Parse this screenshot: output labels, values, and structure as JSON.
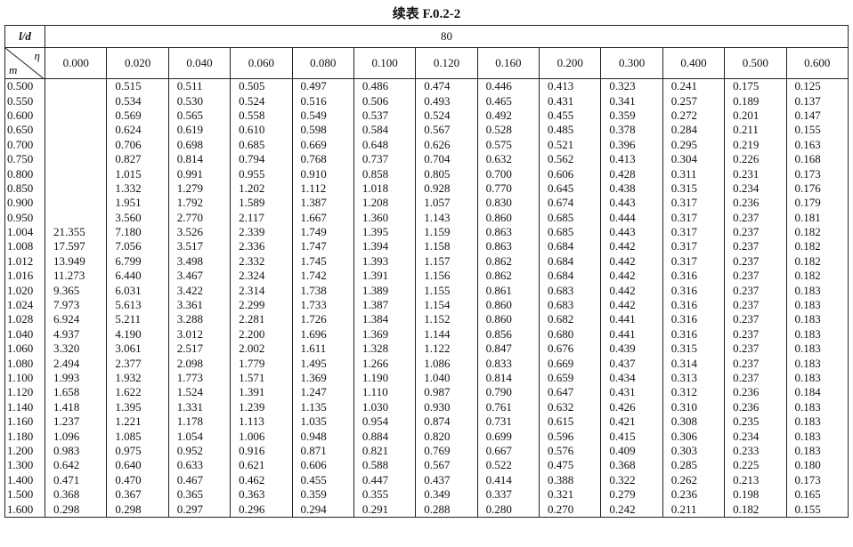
{
  "title": "续表 F.0.2-2",
  "header": {
    "ld_label": "l/d",
    "ld_value": "80",
    "eta_label": "η",
    "m_label": "m",
    "columns": [
      "0.000",
      "0.020",
      "0.040",
      "0.060",
      "0.080",
      "0.100",
      "0.120",
      "0.160",
      "0.200",
      "0.300",
      "0.400",
      "0.500",
      "0.600"
    ]
  },
  "table": {
    "rows": [
      {
        "m": "0.500",
        "values": [
          null,
          "0.515",
          "0.511",
          "0.505",
          "0.497",
          "0.486",
          "0.474",
          "0.446",
          "0.413",
          "0.323",
          "0.241",
          "0.175",
          "0.125"
        ]
      },
      {
        "m": "0.550",
        "values": [
          null,
          "0.534",
          "0.530",
          "0.524",
          "0.516",
          "0.506",
          "0.493",
          "0.465",
          "0.431",
          "0.341",
          "0.257",
          "0.189",
          "0.137"
        ]
      },
      {
        "m": "0.600",
        "values": [
          null,
          "0.569",
          "0.565",
          "0.558",
          "0.549",
          "0.537",
          "0.524",
          "0.492",
          "0.455",
          "0.359",
          "0.272",
          "0.201",
          "0.147"
        ]
      },
      {
        "m": "0.650",
        "values": [
          null,
          "0.624",
          "0.619",
          "0.610",
          "0.598",
          "0.584",
          "0.567",
          "0.528",
          "0.485",
          "0.378",
          "0.284",
          "0.211",
          "0.155"
        ]
      },
      {
        "m": "0.700",
        "values": [
          null,
          "0.706",
          "0.698",
          "0.685",
          "0.669",
          "0.648",
          "0.626",
          "0.575",
          "0.521",
          "0.396",
          "0.295",
          "0.219",
          "0.163"
        ]
      },
      {
        "m": "0.750",
        "values": [
          null,
          "0.827",
          "0.814",
          "0.794",
          "0.768",
          "0.737",
          "0.704",
          "0.632",
          "0.562",
          "0.413",
          "0.304",
          "0.226",
          "0.168"
        ]
      },
      {
        "m": "0.800",
        "values": [
          null,
          "1.015",
          "0.991",
          "0.955",
          "0.910",
          "0.858",
          "0.805",
          "0.700",
          "0.606",
          "0.428",
          "0.311",
          "0.231",
          "0.173"
        ]
      },
      {
        "m": "0.850",
        "values": [
          null,
          "1.332",
          "1.279",
          "1.202",
          "1.112",
          "1.018",
          "0.928",
          "0.770",
          "0.645",
          "0.438",
          "0.315",
          "0.234",
          "0.176"
        ]
      },
      {
        "m": "0.900",
        "values": [
          null,
          "1.951",
          "1.792",
          "1.589",
          "1.387",
          "1.208",
          "1.057",
          "0.830",
          "0.674",
          "0.443",
          "0.317",
          "0.236",
          "0.179"
        ]
      },
      {
        "m": "0.950",
        "values": [
          null,
          "3.560",
          "2.770",
          "2.117",
          "1.667",
          "1.360",
          "1.143",
          "0.860",
          "0.685",
          "0.444",
          "0.317",
          "0.237",
          "0.181"
        ]
      },
      {
        "m": "1.004",
        "values": [
          "21.355",
          "7.180",
          "3.526",
          "2.339",
          "1.749",
          "1.395",
          "1.159",
          "0.863",
          "0.685",
          "0.443",
          "0.317",
          "0.237",
          "0.182"
        ]
      },
      {
        "m": "1.008",
        "values": [
          "17.597",
          "7.056",
          "3.517",
          "2.336",
          "1.747",
          "1.394",
          "1.158",
          "0.863",
          "0.684",
          "0.442",
          "0.317",
          "0.237",
          "0.182"
        ]
      },
      {
        "m": "1.012",
        "values": [
          "13.949",
          "6.799",
          "3.498",
          "2.332",
          "1.745",
          "1.393",
          "1.157",
          "0.862",
          "0.684",
          "0.442",
          "0.317",
          "0.237",
          "0.182"
        ]
      },
      {
        "m": "1.016",
        "values": [
          "11.273",
          "6.440",
          "3.467",
          "2.324",
          "1.742",
          "1.391",
          "1.156",
          "0.862",
          "0.684",
          "0.442",
          "0.316",
          "0.237",
          "0.182"
        ]
      },
      {
        "m": "1.020",
        "values": [
          "9.365",
          "6.031",
          "3.422",
          "2.314",
          "1.738",
          "1.389",
          "1.155",
          "0.861",
          "0.683",
          "0.442",
          "0.316",
          "0.237",
          "0.183"
        ]
      },
      {
        "m": "1.024",
        "values": [
          "7.973",
          "5.613",
          "3.361",
          "2.299",
          "1.733",
          "1.387",
          "1.154",
          "0.860",
          "0.683",
          "0.442",
          "0.316",
          "0.237",
          "0.183"
        ]
      },
      {
        "m": "1.028",
        "values": [
          "6.924",
          "5.211",
          "3.288",
          "2.281",
          "1.726",
          "1.384",
          "1.152",
          "0.860",
          "0.682",
          "0.441",
          "0.316",
          "0.237",
          "0.183"
        ]
      },
      {
        "m": "1.040",
        "values": [
          "4.937",
          "4.190",
          "3.012",
          "2.200",
          "1.696",
          "1.369",
          "1.144",
          "0.856",
          "0.680",
          "0.441",
          "0.316",
          "0.237",
          "0.183"
        ]
      },
      {
        "m": "1.060",
        "values": [
          "3.320",
          "3.061",
          "2.517",
          "2.002",
          "1.611",
          "1.328",
          "1.122",
          "0.847",
          "0.676",
          "0.439",
          "0.315",
          "0.237",
          "0.183"
        ]
      },
      {
        "m": "1.080",
        "values": [
          "2.494",
          "2.377",
          "2.098",
          "1.779",
          "1.495",
          "1.266",
          "1.086",
          "0.833",
          "0.669",
          "0.437",
          "0.314",
          "0.237",
          "0.183"
        ]
      },
      {
        "m": "1.100",
        "values": [
          "1.993",
          "1.932",
          "1.773",
          "1.571",
          "1.369",
          "1.190",
          "1.040",
          "0.814",
          "0.659",
          "0.434",
          "0.313",
          "0.237",
          "0.183"
        ]
      },
      {
        "m": "1.120",
        "values": [
          "1.658",
          "1.622",
          "1.524",
          "1.391",
          "1.247",
          "1.110",
          "0.987",
          "0.790",
          "0.647",
          "0.431",
          "0.312",
          "0.236",
          "0.184"
        ]
      },
      {
        "m": "1.140",
        "values": [
          "1.418",
          "1.395",
          "1.331",
          "1.239",
          "1.135",
          "1.030",
          "0.930",
          "0.761",
          "0.632",
          "0.426",
          "0.310",
          "0.236",
          "0.183"
        ]
      },
      {
        "m": "1.160",
        "values": [
          "1.237",
          "1.221",
          "1.178",
          "1.113",
          "1.035",
          "0.954",
          "0.874",
          "0.731",
          "0.615",
          "0.421",
          "0.308",
          "0.235",
          "0.183"
        ]
      },
      {
        "m": "1.180",
        "values": [
          "1.096",
          "1.085",
          "1.054",
          "1.006",
          "0.948",
          "0.884",
          "0.820",
          "0.699",
          "0.596",
          "0.415",
          "0.306",
          "0.234",
          "0.183"
        ]
      },
      {
        "m": "1.200",
        "values": [
          "0.983",
          "0.975",
          "0.952",
          "0.916",
          "0.871",
          "0.821",
          "0.769",
          "0.667",
          "0.576",
          "0.409",
          "0.303",
          "0.233",
          "0.183"
        ]
      },
      {
        "m": "1.300",
        "values": [
          "0.642",
          "0.640",
          "0.633",
          "0.621",
          "0.606",
          "0.588",
          "0.567",
          "0.522",
          "0.475",
          "0.368",
          "0.285",
          "0.225",
          "0.180"
        ]
      },
      {
        "m": "1.400",
        "values": [
          "0.471",
          "0.470",
          "0.467",
          "0.462",
          "0.455",
          "0.447",
          "0.437",
          "0.414",
          "0.388",
          "0.322",
          "0.262",
          "0.213",
          "0.173"
        ]
      },
      {
        "m": "1.500",
        "values": [
          "0.368",
          "0.367",
          "0.365",
          "0.363",
          "0.359",
          "0.355",
          "0.349",
          "0.337",
          "0.321",
          "0.279",
          "0.236",
          "0.198",
          "0.165"
        ]
      },
      {
        "m": "1.600",
        "values": [
          "0.298",
          "0.298",
          "0.297",
          "0.296",
          "0.294",
          "0.291",
          "0.288",
          "0.280",
          "0.270",
          "0.242",
          "0.211",
          "0.182",
          "0.155"
        ]
      }
    ]
  }
}
